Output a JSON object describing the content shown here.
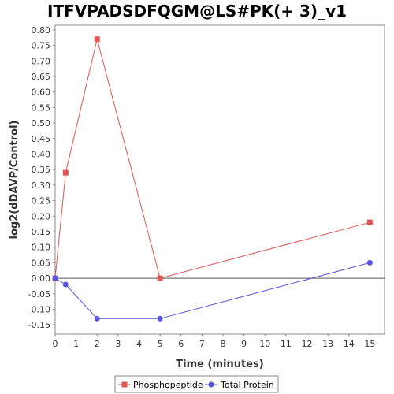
{
  "chart_data": {
    "type": "line",
    "title": "ITFVPADSDFQGM@LS#PK(+ 3)_v1",
    "xlabel": "Time (minutes)",
    "ylabel": "log2(dDAVP/Control)",
    "xlim": [
      0,
      15.7
    ],
    "ylim": [
      -0.18,
      0.815
    ],
    "xticks": [
      0,
      1,
      2,
      3,
      4,
      5,
      6,
      7,
      8,
      9,
      10,
      11,
      12,
      13,
      14,
      15
    ],
    "xtick_labels": [
      "0",
      "1",
      "2",
      "3",
      "4",
      "5",
      "6",
      "7",
      "8",
      "9",
      "10",
      "11",
      "12",
      "13",
      "14",
      "15"
    ],
    "yticks": [
      0.8,
      0.75,
      0.7,
      0.65,
      0.6,
      0.55,
      0.5,
      0.45,
      0.4,
      0.35,
      0.3,
      0.25,
      0.2,
      0.15,
      0.1,
      0.05,
      0.0,
      -0.05,
      -0.1,
      -0.15
    ],
    "ytick_labels": [
      "0.80",
      "0.75",
      "0.70",
      "0.65",
      "0.60",
      "0.55",
      "0.50",
      "0.45",
      "0.40",
      "0.35",
      "0.30",
      "0.25",
      "0.20",
      "0.15",
      "0.10",
      "0.05",
      "0.00",
      "-0.05",
      "-0.10",
      "-0.15"
    ],
    "grid": false,
    "zero_line": true,
    "legend_position": "bottom-center",
    "series": [
      {
        "name": "Phosphopeptide",
        "color": "#e05555",
        "marker": "square",
        "x": [
          0,
          0.5,
          2,
          5,
          15
        ],
        "y": [
          0.0,
          0.34,
          0.77,
          0.0,
          0.18
        ]
      },
      {
        "name": "Total Protein",
        "color": "#5555e0",
        "marker": "circle",
        "x": [
          0,
          0.5,
          2,
          5,
          15
        ],
        "y": [
          0.0,
          -0.02,
          -0.13,
          -0.13,
          0.05
        ]
      }
    ]
  }
}
